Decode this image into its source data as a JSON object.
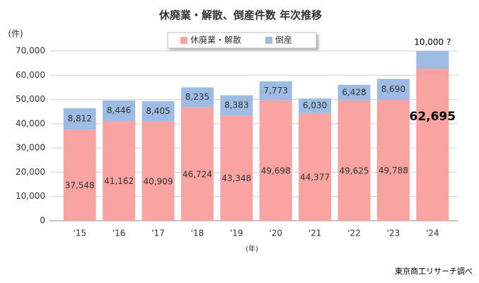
{
  "chart_data": {
    "type": "stacked_bar",
    "title": "休廃業・解散、倒産件数 年次推移",
    "y_label": "(件)",
    "x_label": "(年)",
    "source": "東京商工リサーチ調べ",
    "categories": [
      "'15",
      "'16",
      "'17",
      "'18",
      "'19",
      "'20",
      "'21",
      "'22",
      "'23",
      "'24"
    ],
    "series": [
      {
        "name": "休廃業・解散",
        "color": "#f9a3a3",
        "values": [
          37548,
          41162,
          40909,
          46724,
          43348,
          49698,
          44377,
          49625,
          49788,
          62695
        ],
        "value_labels": [
          "37,548",
          "41,162",
          "40,909",
          "46,724",
          "43,348",
          "49,698",
          "44,377",
          "49,625",
          "49,788",
          "62,695"
        ]
      },
      {
        "name": "倒産",
        "color": "#9dbbe3",
        "values": [
          8812,
          8446,
          8405,
          8235,
          8383,
          7773,
          6030,
          6428,
          8690,
          10000
        ],
        "value_labels": [
          "8,812",
          "8,446",
          "8,405",
          "8,235",
          "8,383",
          "7,773",
          "6,030",
          "6,428",
          "8,690",
          "10,000 ?"
        ]
      }
    ],
    "ylim": [
      0,
      70000
    ],
    "yticks": [
      0,
      {
        "value": 10000,
        "label": "10,000"
      },
      {
        "value": 20000,
        "label": "20,000"
      },
      {
        "value": 30000,
        "label": "30,000"
      },
      {
        "value": 40000,
        "label": "40,000"
      },
      {
        "value": 50000,
        "label": "50,000"
      },
      {
        "value": 60000,
        "label": "60,000"
      },
      {
        "value": 70000,
        "label": "70,000"
      }
    ],
    "grid": true,
    "legend": "top"
  }
}
